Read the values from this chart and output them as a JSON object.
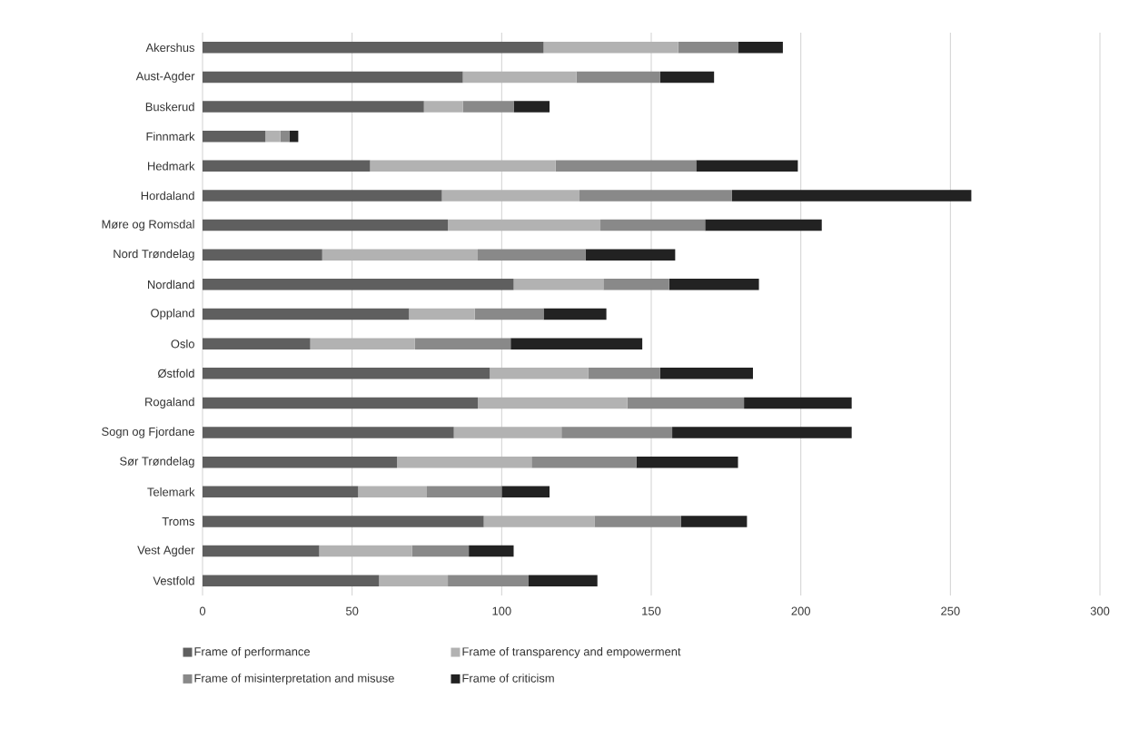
{
  "chart_data": {
    "type": "bar",
    "orientation": "horizontal",
    "stacked": true,
    "categories": [
      "Akershus",
      "Aust-Agder",
      "Buskerud",
      "Finnmark",
      "Hedmark",
      "Hordaland",
      "Møre og Romsdal",
      "Nord Trøndelag",
      "Nordland",
      "Oppland",
      "Oslo",
      "Østfold",
      "Rogaland",
      "Sogn og Fjordane",
      "Sør Trøndelag",
      "Telemark",
      "Troms",
      "Vest Agder",
      "Vestfold"
    ],
    "series": [
      {
        "name": "Frame of performance",
        "color": "#5f5f5f",
        "values": [
          114,
          87,
          74,
          21,
          56,
          80,
          82,
          40,
          104,
          69,
          36,
          96,
          92,
          84,
          65,
          52,
          94,
          39,
          59
        ]
      },
      {
        "name": "Frame of transparency and empowerment",
        "color": "#b2b2b2",
        "values": [
          45,
          38,
          13,
          5,
          62,
          46,
          51,
          52,
          30,
          22,
          35,
          33,
          50,
          36,
          45,
          23,
          37,
          31,
          23
        ]
      },
      {
        "name": "Frame of misinterpretation and misuse",
        "color": "#898989",
        "values": [
          20,
          28,
          17,
          3,
          47,
          51,
          35,
          36,
          22,
          23,
          32,
          24,
          39,
          37,
          35,
          25,
          29,
          19,
          27
        ]
      },
      {
        "name": "Frame of criticism",
        "color": "#222222",
        "values": [
          15,
          18,
          12,
          3,
          34,
          80,
          39,
          30,
          30,
          21,
          44,
          31,
          36,
          60,
          34,
          16,
          22,
          15,
          23
        ]
      }
    ],
    "xlim": [
      0,
      300
    ],
    "xticks": [
      0,
      50,
      100,
      150,
      200,
      250,
      300
    ],
    "grid": "x",
    "legend": "bottom"
  }
}
